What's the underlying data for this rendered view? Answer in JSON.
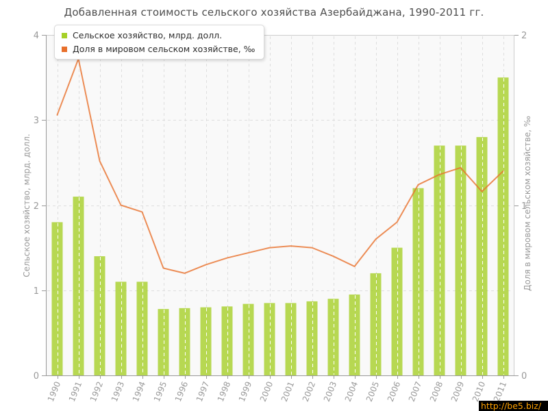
{
  "chart_data": {
    "type": "bar",
    "title": "Добавленная стоимость сельского хозяйства Азербайджана, 1990-2011 гг.",
    "categories": [
      "1990",
      "1991",
      "1992",
      "1993",
      "1994",
      "1995",
      "1996",
      "1997",
      "1998",
      "1999",
      "2000",
      "2001",
      "2002",
      "2003",
      "2004",
      "2005",
      "2006",
      "2007",
      "2008",
      "2009",
      "2010",
      "2011"
    ],
    "series": [
      {
        "name": "Сельское хозяйство, млрд. долл.",
        "type": "bar",
        "axis": "left",
        "color": "#a6d028",
        "values": [
          1.8,
          2.1,
          1.4,
          1.1,
          1.1,
          0.78,
          0.79,
          0.8,
          0.81,
          0.84,
          0.85,
          0.85,
          0.87,
          0.9,
          0.95,
          1.2,
          1.5,
          2.2,
          2.7,
          2.7,
          2.8,
          3.5
        ]
      },
      {
        "name": "Доля в мировом сельском хозяйстве, ‰",
        "type": "line",
        "axis": "right",
        "color": "#e8702c",
        "values": [
          1.53,
          1.86,
          1.26,
          1.0,
          0.96,
          0.63,
          0.6,
          0.65,
          0.69,
          0.72,
          0.75,
          0.76,
          0.75,
          0.7,
          0.64,
          0.8,
          0.9,
          1.12,
          1.18,
          1.22,
          1.08,
          1.2
        ]
      }
    ],
    "left_axis": {
      "label": "Сельское хозяйство, млрд. долл.",
      "range": [
        0,
        4
      ],
      "ticks": [
        0,
        1,
        2,
        3,
        4
      ]
    },
    "right_axis": {
      "label": "Доля в мировом сельском хозяйстве, ‰",
      "range": [
        0,
        2
      ],
      "ticks": [
        0,
        1,
        2
      ]
    },
    "x_axis": {
      "tick_rotation": -68
    },
    "grid": true,
    "legend_position": "top-left",
    "plot_bg": "#f9f9f9",
    "grid_color": "#dedede",
    "series_opacity": 0.8,
    "axis_color": "#999999",
    "border_color": "#cccccc",
    "tick_label_color": "#999999"
  },
  "watermark": {
    "text": "http://be5.biz/",
    "bg": "#000000",
    "color": "#ffa200"
  }
}
